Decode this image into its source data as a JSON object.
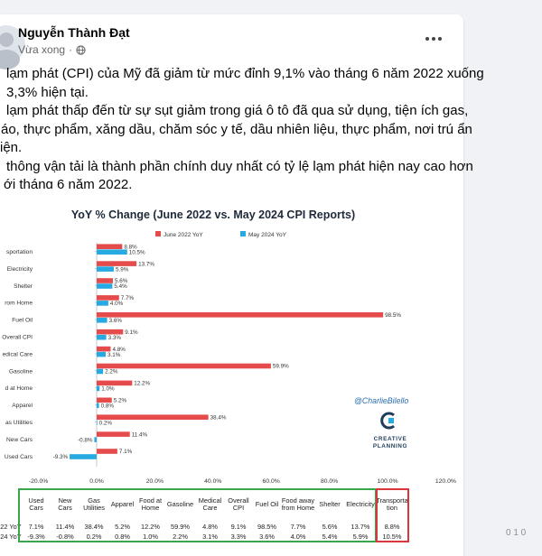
{
  "post": {
    "author": "Nguyễn Thành Đạt",
    "time": "Vừa xong",
    "separator": "·",
    "lines": [
      "lạm phát (CPI) của Mỹ đã giảm từ mức đỉnh 9,1% vào tháng 6 năm 2022 xuống",
      "3,3% hiện tại.",
      "lạm phát thấp đến từ sự sụt giảm trong giá ô tô đã qua sử dụng, tiện ích gas,",
      "áo, thực phẩm, xăng dầu, chăm sóc y tế, dầu nhiên liệu, thực phẩm, nơi trú ẩn",
      "iện.",
      "thông vận tải là thành phần chính duy nhất có tỷ lệ lạm phát hiện nay cao hơn",
      "ới tháng 6 năm 2022."
    ]
  },
  "chart_data": {
    "type": "bar",
    "orientation": "horizontal",
    "title": "YoY % Change (June 2022 vs. May 2024 CPI Reports)",
    "categories": [
      "sportation",
      "Electricity",
      "Shelter",
      "rom Home",
      "Fuel Oil",
      "Overall CPI",
      "edical Care",
      "Gasoline",
      "d at Home",
      "Apparel",
      "as Utilities",
      "New Cars",
      "Used Cars"
    ],
    "series": [
      {
        "name": "June 2022 YoY",
        "color": "#e64b4b",
        "values": [
          8.8,
          13.7,
          5.6,
          7.7,
          98.5,
          9.1,
          4.8,
          59.9,
          12.2,
          5.2,
          38.4,
          11.4,
          7.1
        ],
        "labels": [
          "8.8%",
          "13.7%",
          "5.6%",
          "7.7%",
          "98.5%",
          "9.1%",
          "4.8%",
          "59.9%",
          "12.2%",
          "5.2%",
          "38.4%",
          "11.4%",
          "7.1%"
        ]
      },
      {
        "name": "May 2024 YoY",
        "color": "#27a9e1",
        "values": [
          10.5,
          5.9,
          5.4,
          4.0,
          3.6,
          3.3,
          3.1,
          2.2,
          1.0,
          0.8,
          0.2,
          -0.8,
          -9.3
        ],
        "labels": [
          "10.5%",
          "5.9%",
          "5.4%",
          "4.0%",
          "3.6%",
          "3.3%",
          "3.1%",
          "2.2%",
          "1.0%",
          "0.8%",
          "0.2%",
          "-0.8%",
          "-9.3%"
        ]
      }
    ],
    "xlim": [
      -20,
      120
    ],
    "xticks": [
      "-20.0%",
      "0.0%",
      "20.0%",
      "40.0%",
      "60.0%",
      "80.0%",
      "100.0%",
      "120.0%"
    ],
    "xtick_values": [
      -20,
      0,
      20,
      40,
      60,
      80,
      100,
      120
    ],
    "legend_position": "top-right",
    "grid": false,
    "watermark": "@CharlieBilello",
    "logo_text": [
      "CREATIVE",
      "PLANNING"
    ]
  },
  "table": {
    "headers": [
      "Used Cars",
      "New Cars",
      "Gas Utilities",
      "Apparel",
      "Food at Home",
      "Gasoline",
      "Medical Care",
      "Overall CPI",
      "Fuel Oil",
      "Food away from Home",
      "Shelter",
      "Electricity",
      "Transporta tion"
    ],
    "row_labels": [
      "22 YoY",
      "24 YoY"
    ],
    "rows": [
      [
        "7.1%",
        "11.4%",
        "38.4%",
        "5.2%",
        "12.2%",
        "59.9%",
        "4.8%",
        "9.1%",
        "98.5%",
        "7.7%",
        "5.6%",
        "13.7%",
        "8.8%"
      ],
      [
        "-9.3%",
        "-0.8%",
        "0.2%",
        "0.8%",
        "1.0%",
        "2.2%",
        "3.1%",
        "3.3%",
        "3.6%",
        "4.0%",
        "5.4%",
        "5.9%",
        "10.5%"
      ]
    ]
  },
  "colors": {
    "accent_red": "#e64b4b",
    "accent_blue": "#27a9e1",
    "frame_green": "#3aa64a",
    "frame_red": "#d9363e"
  },
  "edge_text": "0 1 0"
}
